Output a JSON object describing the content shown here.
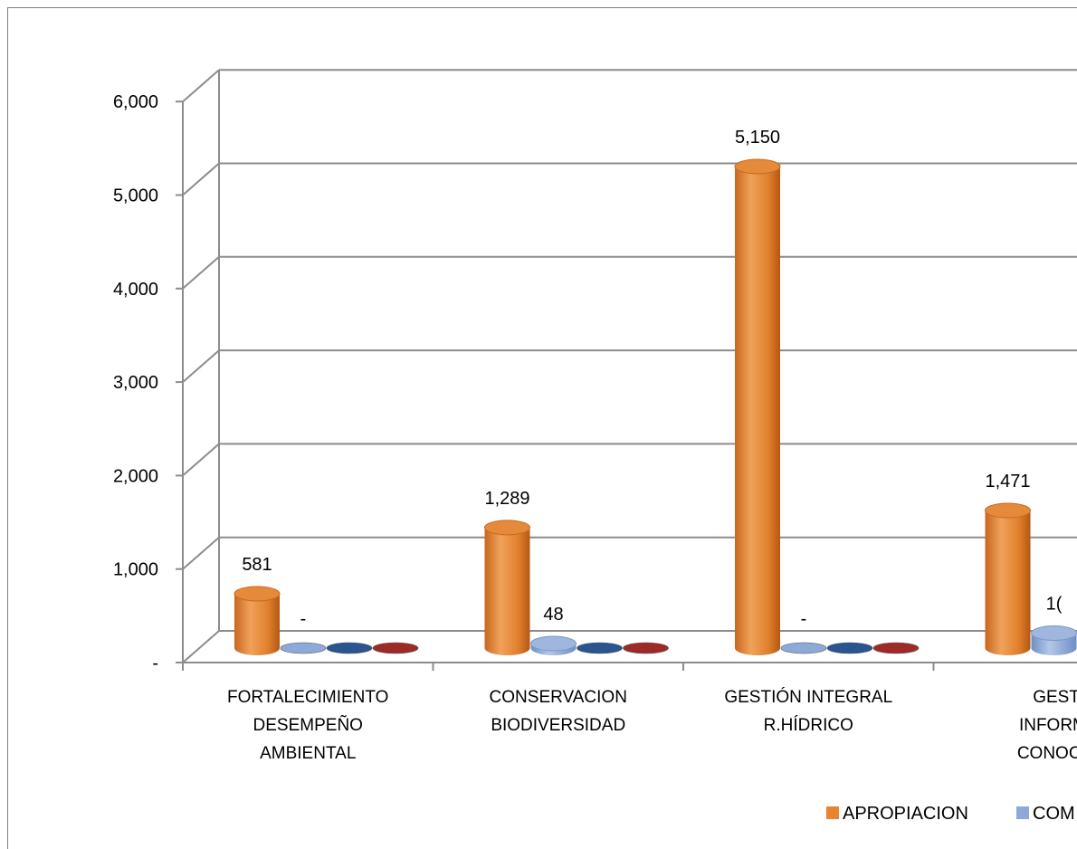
{
  "chart_data": {
    "type": "bar",
    "categories": [
      [
        "FORTALECIMIENTO",
        "DESEMPEÑO",
        "AMBIENTAL"
      ],
      [
        "CONSERVACION",
        "BIODIVERSIDAD"
      ],
      [
        "GESTIÓN INTEGRAL",
        "R.HÍDRICO"
      ],
      [
        "GESTI",
        "INFORMA",
        "CONOCIM"
      ]
    ],
    "ylim": [
      0,
      6000
    ],
    "yticks": [
      "-",
      "1,000",
      "2,000",
      "3,000",
      "4,000",
      "5,000",
      "6,000"
    ],
    "series": [
      {
        "name": "APROPIACION",
        "color": "#e8832f",
        "values": [
          581,
          1289,
          5150,
          1471
        ],
        "labels": [
          "581",
          "1,289",
          "5,150",
          "1,471"
        ]
      },
      {
        "name": "COM",
        "color": "#8ea9d8",
        "values": [
          0,
          48,
          0,
          160
        ],
        "labels": [
          "-",
          "48",
          "-",
          "1("
        ]
      },
      {
        "name": "",
        "color": "#2a5590",
        "values": [
          0,
          0,
          0,
          0
        ],
        "labels": []
      },
      {
        "name": "",
        "color": "#9e2a28",
        "values": [
          0,
          0,
          0,
          0
        ],
        "labels": []
      }
    ],
    "legend_position": "bottom",
    "grid": true,
    "style": "3d-cylinder"
  }
}
